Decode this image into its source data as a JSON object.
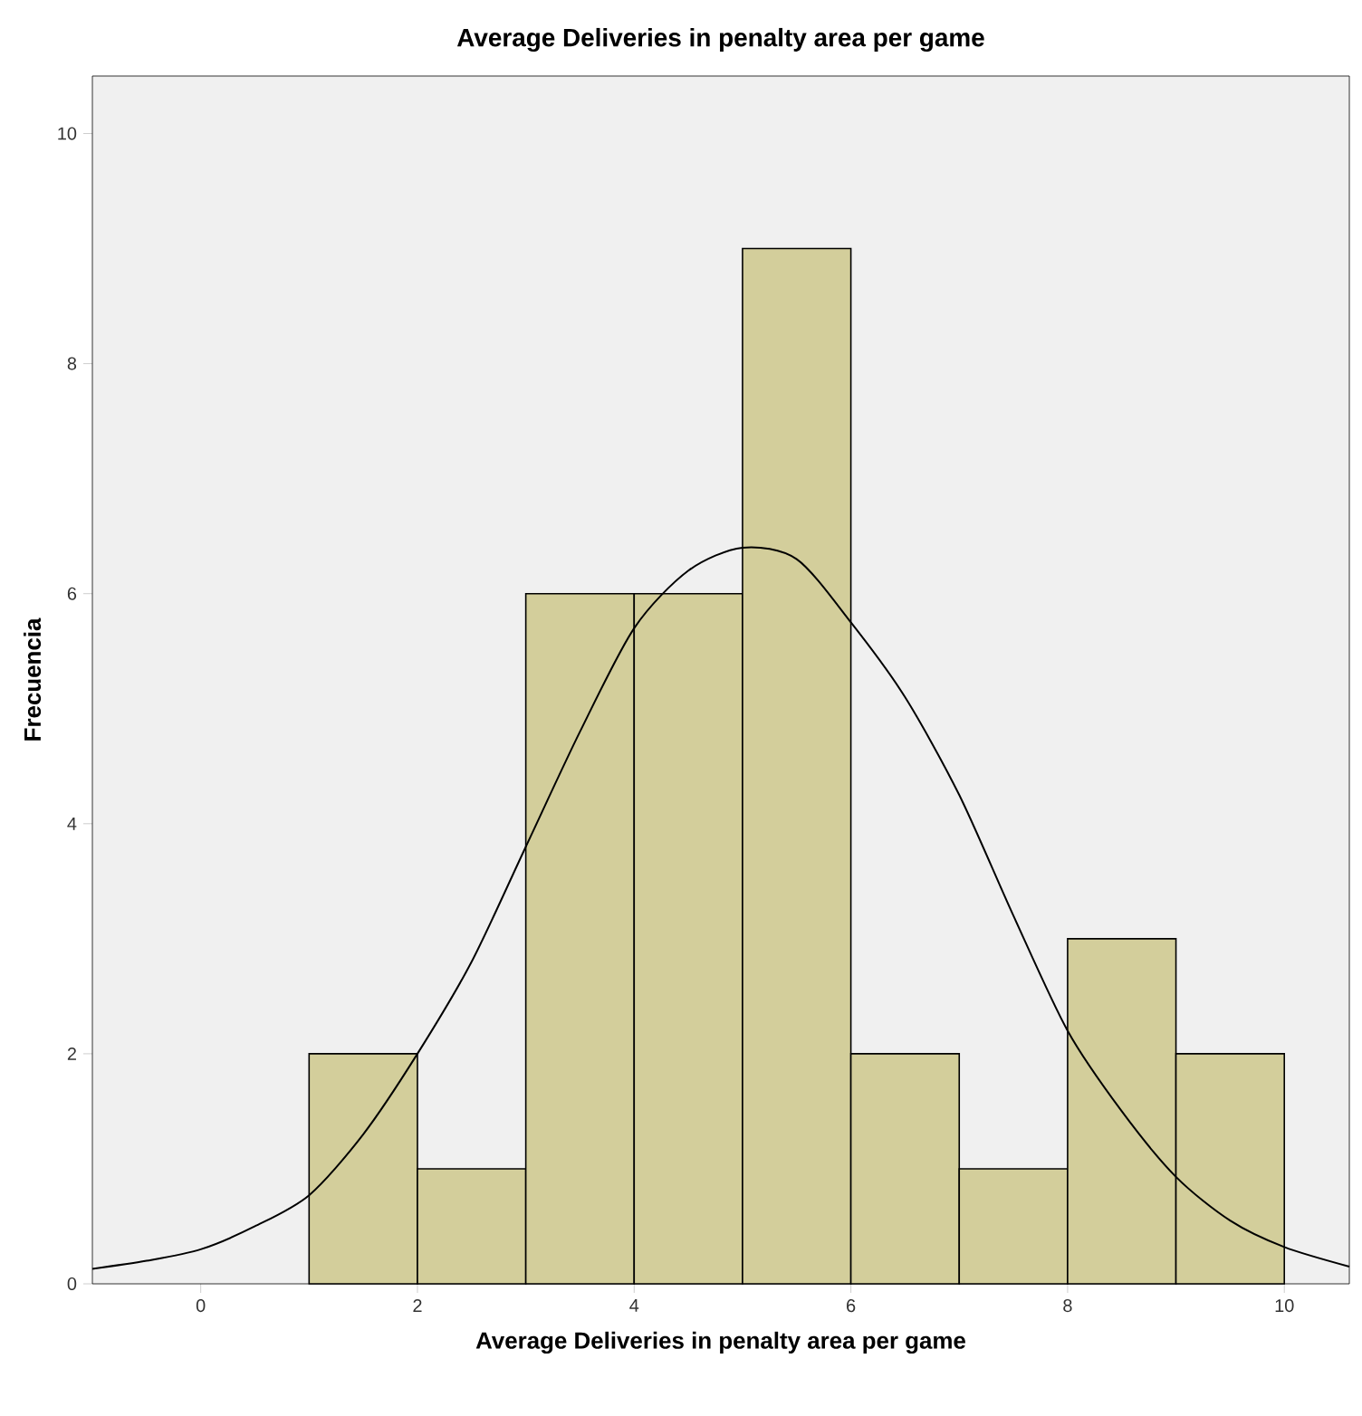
{
  "chart_data": {
    "type": "histogram",
    "title": "Average Deliveries in penalty area per game",
    "xlabel": "Average Deliveries in penalty area per game",
    "ylabel": "Frecuencia",
    "bins": [
      1,
      2,
      3,
      4,
      5,
      6,
      7,
      8,
      9,
      10
    ],
    "values": [
      2,
      1,
      6,
      6,
      9,
      2,
      1,
      3,
      2
    ],
    "color": "#d3ce9b",
    "xlim": [
      -1,
      10.6
    ],
    "ylim": [
      0,
      10.5
    ],
    "xticks": [
      0,
      2,
      4,
      6,
      8,
      10
    ],
    "yticks": [
      0,
      2,
      4,
      6,
      8,
      10
    ],
    "grid": false,
    "series": [
      {
        "type": "line",
        "color": "#000000",
        "x": [
          -1,
          -0.5,
          0,
          0.5,
          1,
          1.5,
          2,
          2.5,
          3,
          3.5,
          4,
          4.5,
          5,
          5.5,
          6,
          6.5,
          7,
          7.5,
          8,
          8.5,
          9,
          9.5,
          10,
          10.6
        ],
        "values": [
          0.13,
          0.2,
          0.3,
          0.5,
          0.77,
          1.3,
          2.0,
          2.8,
          3.8,
          4.8,
          5.7,
          6.2,
          6.4,
          6.3,
          5.75,
          5.1,
          4.25,
          3.2,
          2.2,
          1.5,
          0.93,
          0.55,
          0.32,
          0.15
        ]
      }
    ]
  }
}
